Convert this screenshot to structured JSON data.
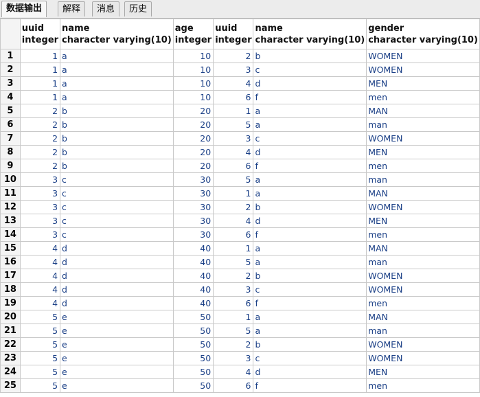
{
  "tabs": [
    "数据输出",
    "解释",
    "消息",
    "历史"
  ],
  "columns": [
    {
      "name": "uuid",
      "type": "integer",
      "align": "num"
    },
    {
      "name": "name",
      "type": "character varying(10)",
      "align": "txt"
    },
    {
      "name": "age",
      "type": "integer",
      "align": "num"
    },
    {
      "name": "uuid",
      "type": "integer",
      "align": "num"
    },
    {
      "name": "name",
      "type": "character varying(10)",
      "align": "txt"
    },
    {
      "name": "gender",
      "type": "character varying(10)",
      "align": "txt"
    }
  ],
  "rows": [
    [
      "1",
      "a",
      "10",
      "2",
      "b",
      "WOMEN"
    ],
    [
      "1",
      "a",
      "10",
      "3",
      "c",
      "WOMEN"
    ],
    [
      "1",
      "a",
      "10",
      "4",
      "d",
      "MEN"
    ],
    [
      "1",
      "a",
      "10",
      "6",
      "f",
      "men"
    ],
    [
      "2",
      "b",
      "20",
      "1",
      "a",
      "MAN"
    ],
    [
      "2",
      "b",
      "20",
      "5",
      "a",
      "man"
    ],
    [
      "2",
      "b",
      "20",
      "3",
      "c",
      "WOMEN"
    ],
    [
      "2",
      "b",
      "20",
      "4",
      "d",
      "MEN"
    ],
    [
      "2",
      "b",
      "20",
      "6",
      "f",
      "men"
    ],
    [
      "3",
      "c",
      "30",
      "5",
      "a",
      "man"
    ],
    [
      "3",
      "c",
      "30",
      "1",
      "a",
      "MAN"
    ],
    [
      "3",
      "c",
      "30",
      "2",
      "b",
      "WOMEN"
    ],
    [
      "3",
      "c",
      "30",
      "4",
      "d",
      "MEN"
    ],
    [
      "3",
      "c",
      "30",
      "6",
      "f",
      "men"
    ],
    [
      "4",
      "d",
      "40",
      "1",
      "a",
      "MAN"
    ],
    [
      "4",
      "d",
      "40",
      "5",
      "a",
      "man"
    ],
    [
      "4",
      "d",
      "40",
      "2",
      "b",
      "WOMEN"
    ],
    [
      "4",
      "d",
      "40",
      "3",
      "c",
      "WOMEN"
    ],
    [
      "4",
      "d",
      "40",
      "6",
      "f",
      "men"
    ],
    [
      "5",
      "e",
      "50",
      "1",
      "a",
      "MAN"
    ],
    [
      "5",
      "e",
      "50",
      "5",
      "a",
      "man"
    ],
    [
      "5",
      "e",
      "50",
      "2",
      "b",
      "WOMEN"
    ],
    [
      "5",
      "e",
      "50",
      "3",
      "c",
      "WOMEN"
    ],
    [
      "5",
      "e",
      "50",
      "4",
      "d",
      "MEN"
    ],
    [
      "5",
      "e",
      "50",
      "6",
      "f",
      "men"
    ]
  ],
  "colors": {
    "cell_text": "#1a3f86",
    "grid_line": "#c9c9c9",
    "header_bg": "#f4f4f4"
  }
}
